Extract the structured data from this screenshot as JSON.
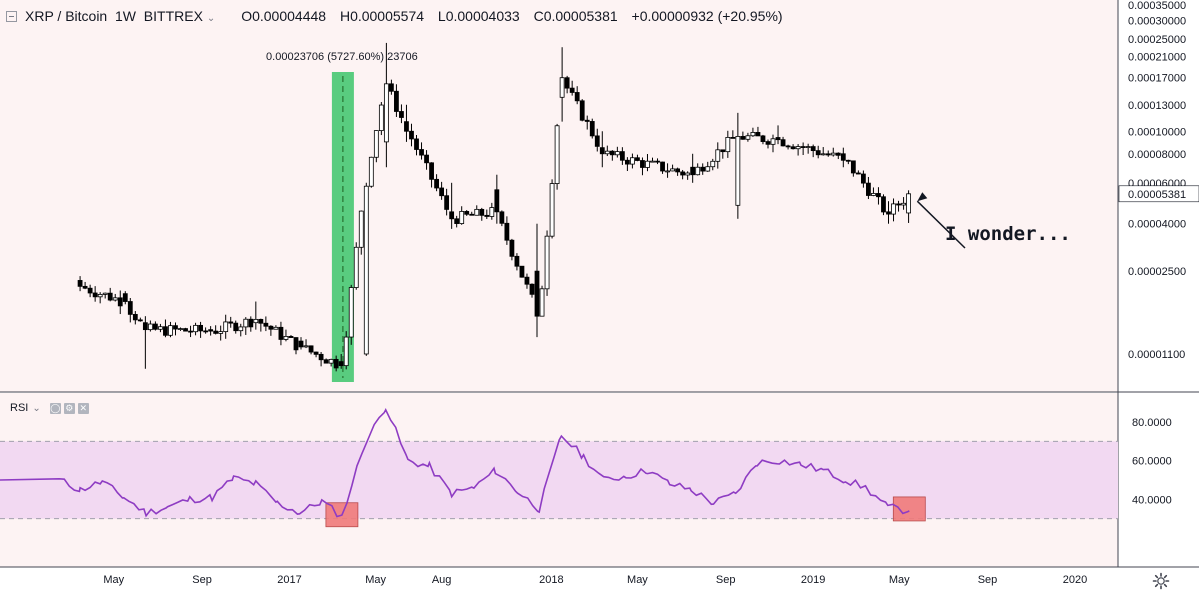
{
  "header": {
    "symbol": "XRP / Bitcoin",
    "interval": "1W",
    "exchange": "BITTREX",
    "open": "O0.00004448",
    "high": "H0.00005574",
    "low": "L0.00004033",
    "close": "C0.00005381",
    "change": "+0.00000932 (+20.95%)"
  },
  "rsi_header": {
    "label": "RSI"
  },
  "colors": {
    "background": "#fdf3f3",
    "candle_up": "#ffffff",
    "candle_down": "#000000",
    "rsi_line": "#8e3cc3",
    "rsi_band": "#f2d9f2",
    "highlight_green": "#3cc46a",
    "highlight_red": "#f07b7b",
    "price_tag": "#ffffff"
  },
  "chart_data": [
    {
      "type": "candlestick",
      "scale": "log",
      "ylim": [
        8.5e-06,
        0.00036
      ],
      "y_tick_labels": [
        "0.00035000",
        "0.00030000",
        "0.00025000",
        "0.00021000",
        "0.00017000",
        "0.00013000",
        "0.00010000",
        "0.00008000",
        "0.00006000",
        "0.00005381",
        "0.00004000",
        "0.00002500",
        "0.00001100"
      ],
      "x_tick_labels": [
        "May",
        "Sep",
        "2017",
        "May",
        "Aug",
        "2018",
        "May",
        "Sep",
        "2019",
        "May",
        "Sep",
        "2020"
      ],
      "last_price_label": "0.00005381",
      "candles_ohlc_approx": [
        [
          "2016-03",
          2.28e-05,
          2.38e-05,
          2.05e-05,
          2.15e-05
        ],
        [
          "2016-05",
          2e-05,
          2.05e-05,
          1.8e-05,
          1.85e-05
        ],
        [
          "2016-06",
          1.5e-05,
          1.6e-05,
          9.5e-06,
          1.4e-05
        ],
        [
          "2016-09",
          1.4e-05,
          1.45e-05,
          1.32e-05,
          1.38e-05
        ],
        [
          "2016-11",
          1.5e-05,
          1.85e-05,
          1.4e-05,
          1.55e-05
        ],
        [
          "2017-01",
          1.25e-05,
          1.3e-05,
          1.15e-05,
          1.18e-05
        ],
        [
          "2017-03",
          1.02e-05,
          1.1e-05,
          9.5e-06,
          9.8e-06
        ],
        [
          "2017-04",
          1.1e-05,
          6e-05,
          1.08e-05,
          5.8e-05
        ],
        [
          "2017-05",
          9e-05,
          0.00024,
          7e-05,
          0.00016
        ],
        [
          "2017-06",
          0.00011,
          0.00013,
          9e-05,
          0.0001
        ],
        [
          "2017-08",
          4.5e-05,
          6e-05,
          3.8e-05,
          4.2e-05
        ],
        [
          "2017-10",
          5.6e-05,
          6.5e-05,
          4e-05,
          4.5e-05
        ],
        [
          "2017-12",
          2.5e-05,
          4e-05,
          1.3e-05,
          1.6e-05
        ],
        [
          "2018-01",
          0.00014,
          0.00023,
          0.00011,
          0.00017
        ],
        [
          "2018-03",
          8.5e-05,
          0.0001,
          7e-05,
          8e-05
        ],
        [
          "2018-07",
          7e-05,
          8e-05,
          6e-05,
          6.5e-05
        ],
        [
          "2018-09",
          4.8e-05,
          0.00012,
          4.2e-05,
          9.5e-05
        ],
        [
          "2018-11",
          9.4e-05,
          0.000106,
          8.8e-05,
          9.2e-05
        ],
        [
          "2019-02",
          8e-05,
          8.5e-05,
          7e-05,
          7.5e-05
        ],
        [
          "2019-04",
          4.5e-05,
          5e-05,
          4e-05,
          4.4e-05
        ],
        [
          "2019-05",
          4.45e-05,
          5.57e-05,
          4.03e-05,
          5.38e-05
        ]
      ]
    },
    {
      "type": "line",
      "name": "RSI",
      "ylim": [
        5,
        95
      ],
      "y_tick_labels": [
        "80.0000",
        "60.0000",
        "40.0000"
      ],
      "band": [
        30,
        70
      ],
      "values_approx": [
        [
          "2016-02",
          50
        ],
        [
          "2016-03",
          45
        ],
        [
          "2016-04",
          49
        ],
        [
          "2016-05",
          41
        ],
        [
          "2016-06",
          33
        ],
        [
          "2016-07",
          36
        ],
        [
          "2016-08",
          40
        ],
        [
          "2016-09",
          41
        ],
        [
          "2016-10",
          51
        ],
        [
          "2016-11",
          48
        ],
        [
          "2016-12",
          38
        ],
        [
          "2017-01",
          33
        ],
        [
          "2017-02",
          39
        ],
        [
          "2017-03",
          31
        ],
        [
          "2017-04",
          68
        ],
        [
          "2017-05",
          88
        ],
        [
          "2017-06",
          60
        ],
        [
          "2017-07",
          57
        ],
        [
          "2017-08",
          43
        ],
        [
          "2017-09",
          46
        ],
        [
          "2017-10",
          55
        ],
        [
          "2017-11",
          44
        ],
        [
          "2017-12",
          35
        ],
        [
          "2018-01",
          73
        ],
        [
          "2018-02",
          62
        ],
        [
          "2018-03",
          50
        ],
        [
          "2018-04",
          52
        ],
        [
          "2018-05",
          55
        ],
        [
          "2018-06",
          48
        ],
        [
          "2018-07",
          45
        ],
        [
          "2018-08",
          38
        ],
        [
          "2018-09",
          43
        ],
        [
          "2018-10",
          59
        ],
        [
          "2018-11",
          60
        ],
        [
          "2018-12",
          58
        ],
        [
          "2019-01",
          55
        ],
        [
          "2019-02",
          50
        ],
        [
          "2019-03",
          46
        ],
        [
          "2019-04",
          36
        ],
        [
          "2019-05",
          34
        ]
      ]
    }
  ],
  "annotations": {
    "measure_label": "0.00023706 (5727.60%) 23706",
    "note": "I wonder..."
  }
}
